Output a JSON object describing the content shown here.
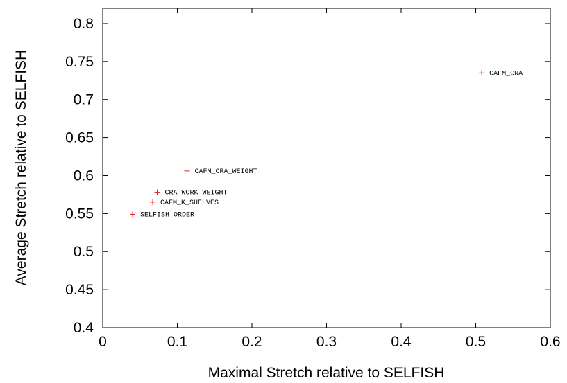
{
  "chart_data": {
    "type": "scatter",
    "xlabel": "Maximal Stretch relative to SELFISH",
    "ylabel": "Average Stretch relative to SELFISH",
    "xlim": [
      0,
      0.6
    ],
    "ylim": [
      0.4,
      0.82
    ],
    "xticks": [
      0,
      0.1,
      0.2,
      0.3,
      0.4,
      0.5,
      0.6
    ],
    "xtick_labels": [
      "0",
      "0.1",
      "0.2",
      "0.3",
      "0.4",
      "0.5",
      "0.6"
    ],
    "yticks": [
      0.4,
      0.45,
      0.5,
      0.55,
      0.6,
      0.65,
      0.7,
      0.75,
      0.8
    ],
    "ytick_labels": [
      "0.4",
      "0.45",
      "0.5",
      "0.55",
      "0.6",
      "0.65",
      "0.7",
      "0.75",
      "0.8"
    ],
    "grid": false,
    "marker": "+",
    "marker_color": "#e41a1c",
    "points": [
      {
        "label": "CAFM_CRA",
        "x": 0.508,
        "y": 0.735
      },
      {
        "label": "CAFM_CRA_WEIGHT",
        "x": 0.113,
        "y": 0.606
      },
      {
        "label": "CRA_WORK_WEIGHT",
        "x": 0.073,
        "y": 0.578
      },
      {
        "label": "CAFM_K_SHELVES",
        "x": 0.067,
        "y": 0.565
      },
      {
        "label": "SELFISH_ORDER",
        "x": 0.04,
        "y": 0.549
      }
    ]
  }
}
